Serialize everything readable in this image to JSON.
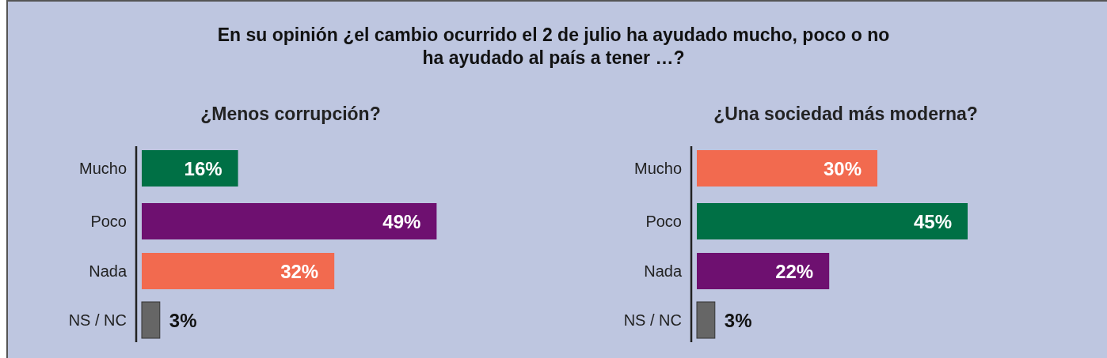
{
  "chart_data": [
    {
      "type": "bar",
      "orientation": "horizontal",
      "title": "En su opinión ¿el cambio ocurrido el 2 de julio ha ayudado mucho, poco o no ha ayudado al país a tener …?",
      "subtitle": "¿Menos corrupción?",
      "categories": [
        "Mucho",
        "Poco",
        "Nada",
        "NS / NC"
      ],
      "values": [
        16,
        49,
        32,
        3
      ],
      "colors": [
        "#007045",
        "#6e1070",
        "#f26a4f",
        "#666666"
      ],
      "value_labels": [
        "16%",
        "49%",
        "32%",
        "3%"
      ],
      "tick_labels": "y"
    },
    {
      "type": "bar",
      "orientation": "horizontal",
      "subtitle": "¿Una sociedad más moderna?",
      "categories": [
        "Mucho",
        "Poco",
        "Nada",
        "NS / NC"
      ],
      "values": [
        30,
        45,
        22,
        3
      ],
      "colors": [
        "#f26a4f",
        "#007045",
        "#6e1070",
        "#666666"
      ],
      "value_labels": [
        "30%",
        "45%",
        "22%",
        "3%"
      ],
      "tick_labels": "y"
    }
  ]
}
